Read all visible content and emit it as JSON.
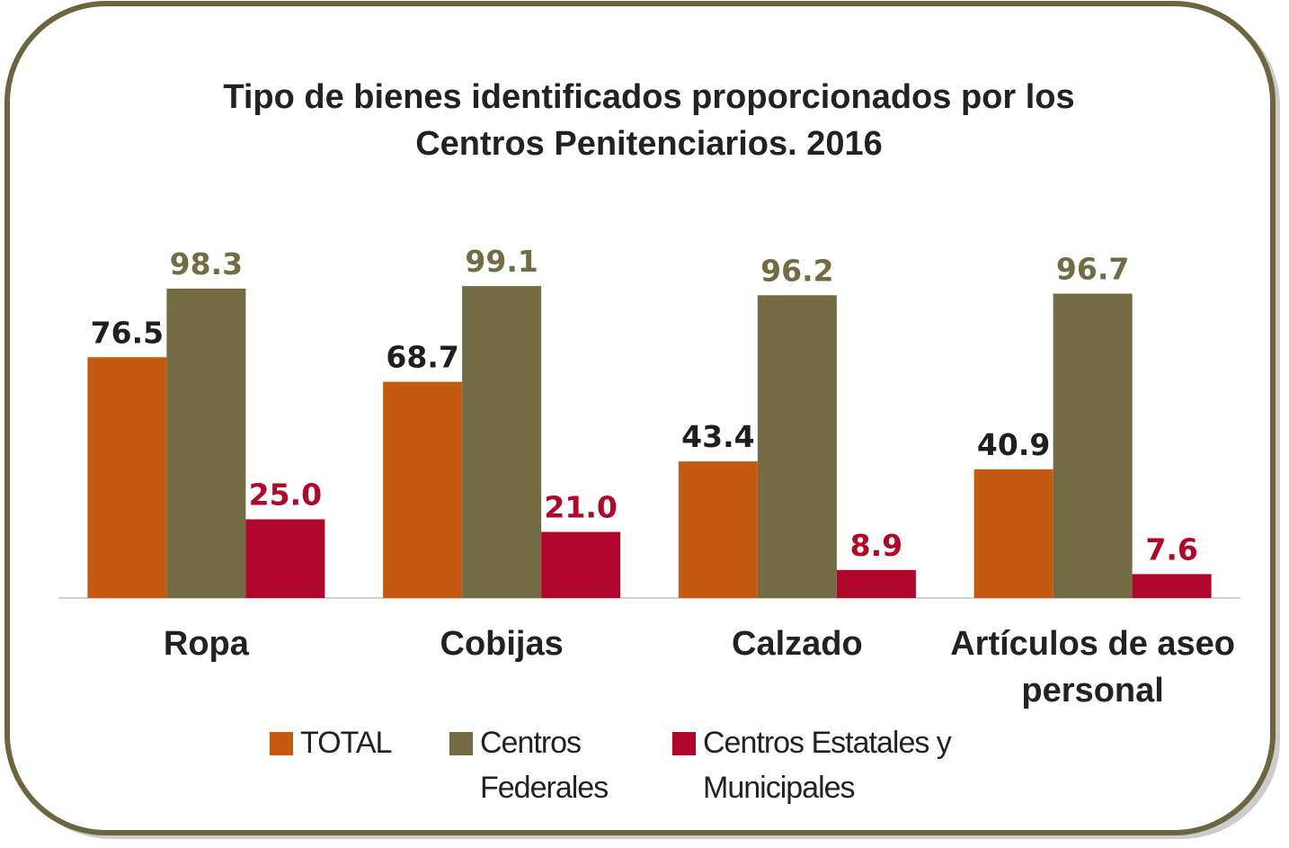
{
  "chart_data": {
    "type": "bar",
    "title": "Tipo de bienes identificados proporcionados por los Centros Penitenciarios. 2016",
    "categories": [
      "Ropa",
      "Cobijas",
      "Calzado",
      "Artículos de aseo personal"
    ],
    "series": [
      {
        "name": "TOTAL",
        "color": "#c55a11",
        "label_color": "#1f1f1f",
        "values": [
          76.5,
          68.7,
          43.4,
          40.9
        ]
      },
      {
        "name": "Centros Federales",
        "color": "#736b44",
        "label_color": "#736b44",
        "values": [
          98.3,
          99.1,
          96.2,
          96.7
        ]
      },
      {
        "name": "Centros Estatales y Municipales",
        "color": "#b0062a",
        "label_color": "#b0062a",
        "values": [
          25,
          21,
          8.9,
          7.6
        ],
        "value_labels": [
          "25.0",
          "21.0",
          "8.9",
          "7.6"
        ]
      }
    ],
    "ylim": [
      0,
      100
    ]
  }
}
